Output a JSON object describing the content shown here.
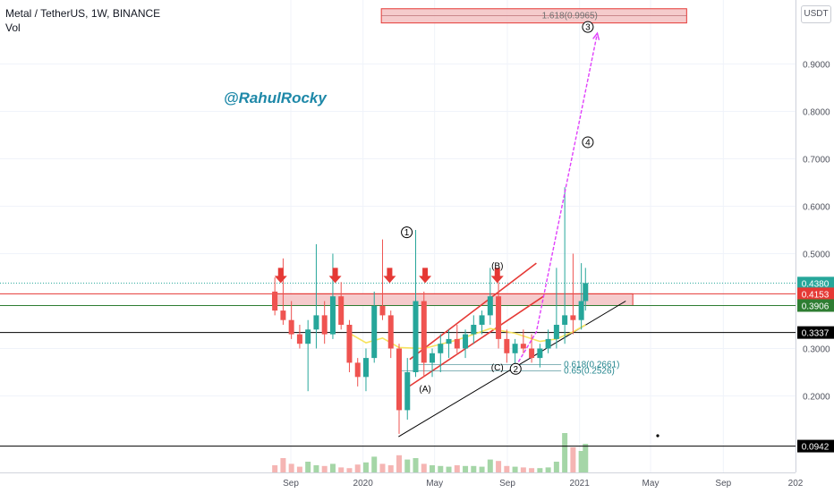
{
  "header": {
    "title": "Metal / TetherUS, 1W, BINANCE",
    "volume_label": "Vol"
  },
  "watermark": "@RahulRocky",
  "currency_button": "USDT",
  "colors": {
    "up": "#26a69a",
    "down": "#ef5350",
    "volume_up": "#a5d6a7",
    "volume_down": "#f5b5b3",
    "resistance_zone": "#f3c2c3",
    "arrows": "#e53935",
    "projection": "#e040fb",
    "moving_average": "#f7e35d"
  },
  "chart_data": {
    "type": "candlestick",
    "price_axis": {
      "tick_labels": [
        "0.9000",
        "0.8000",
        "0.7000",
        "0.6000",
        "0.5000",
        "0.3000",
        "0.2000"
      ],
      "ticks": [
        0.9,
        0.8,
        0.7,
        0.6,
        0.5,
        0.3,
        0.2
      ],
      "range": [
        0.07,
        1.04
      ]
    },
    "time_axis": {
      "tick_labels": [
        "Sep",
        "2020",
        "May",
        "Sep",
        "2021",
        "May",
        "Sep",
        "202"
      ],
      "ticks": [
        "2019-09",
        "2020-01",
        "2020-05",
        "2020-09",
        "2021-01",
        "2021-05",
        "2021-09",
        "2022-01"
      ]
    },
    "price_labels": [
      {
        "text": "0.4380",
        "value": 0.438,
        "color": "#26a69a",
        "line": "dotted"
      },
      {
        "text": "0.4153",
        "value": 0.4153,
        "color": "#e53935",
        "line": "solid"
      },
      {
        "text": "0.3906",
        "value": 0.3906,
        "color": "#2e7d32",
        "line": "solid"
      },
      {
        "text": "0.3337",
        "value": 0.3337,
        "color": "#000000",
        "line": "solid"
      },
      {
        "text": "0.0942",
        "value": 0.0942,
        "color": "#000000",
        "line": "solid"
      }
    ],
    "zones": [
      {
        "label": "",
        "start": "2019-08",
        "end": "2021-04",
        "low": 0.3906,
        "high": 0.4153
      },
      {
        "label": "1.618(0.9965)",
        "start": "2020-02",
        "end": "2021-07",
        "low": 0.9865,
        "high": 1.0165
      }
    ],
    "fib_levels": [
      {
        "label": "0.618(0.2661)",
        "value": 0.2661,
        "start": "2020-04",
        "end": "2020-12"
      },
      {
        "label": "0.65(0.2526)",
        "value": 0.2526,
        "start": "2020-03",
        "end": "2020-12"
      }
    ],
    "wave_labels": [
      {
        "text": "1",
        "date": "2020-03",
        "price": 0.545,
        "circled": true
      },
      {
        "text": "(B)",
        "date": "2020-08",
        "price": 0.475,
        "circled": false
      },
      {
        "text": "(A)",
        "date": "2020-04",
        "price": 0.215,
        "circled": false
      },
      {
        "text": "(C)",
        "date": "2020-08",
        "price": 0.26,
        "circled": false
      },
      {
        "text": "2",
        "date": "2020-09",
        "price": 0.257,
        "circled": true
      },
      {
        "text": "4",
        "date": "2021-01",
        "price": 0.735,
        "circled": true
      },
      {
        "text": "3",
        "date": "2021-01",
        "price": 0.978,
        "circled": true
      }
    ],
    "red_arrow_dates": [
      "2019-08",
      "2019-11",
      "2020-02",
      "2020-04",
      "2020-08"
    ],
    "candles": [
      {
        "t": "2019-08-05",
        "o": 0.42,
        "h": 0.45,
        "l": 0.37,
        "c": 0.38
      },
      {
        "t": "2019-08-19",
        "o": 0.38,
        "h": 0.49,
        "l": 0.35,
        "c": 0.36
      },
      {
        "t": "2019-09-02",
        "o": 0.36,
        "h": 0.4,
        "l": 0.32,
        "c": 0.33
      },
      {
        "t": "2019-09-16",
        "o": 0.33,
        "h": 0.35,
        "l": 0.3,
        "c": 0.31
      },
      {
        "t": "2019-09-30",
        "o": 0.31,
        "h": 0.36,
        "l": 0.21,
        "c": 0.34
      },
      {
        "t": "2019-10-14",
        "o": 0.34,
        "h": 0.52,
        "l": 0.3,
        "c": 0.37
      },
      {
        "t": "2019-10-28",
        "o": 0.37,
        "h": 0.4,
        "l": 0.31,
        "c": 0.33
      },
      {
        "t": "2019-11-11",
        "o": 0.33,
        "h": 0.5,
        "l": 0.32,
        "c": 0.41
      },
      {
        "t": "2019-11-25",
        "o": 0.41,
        "h": 0.44,
        "l": 0.34,
        "c": 0.35
      },
      {
        "t": "2019-12-09",
        "o": 0.35,
        "h": 0.36,
        "l": 0.25,
        "c": 0.27
      },
      {
        "t": "2019-12-23",
        "o": 0.27,
        "h": 0.28,
        "l": 0.22,
        "c": 0.24
      },
      {
        "t": "2020-01-06",
        "o": 0.24,
        "h": 0.3,
        "l": 0.21,
        "c": 0.28
      },
      {
        "t": "2020-01-20",
        "o": 0.28,
        "h": 0.42,
        "l": 0.27,
        "c": 0.39
      },
      {
        "t": "2020-02-03",
        "o": 0.39,
        "h": 0.53,
        "l": 0.36,
        "c": 0.37
      },
      {
        "t": "2020-02-17",
        "o": 0.37,
        "h": 0.38,
        "l": 0.28,
        "c": 0.3
      },
      {
        "t": "2020-03-02",
        "o": 0.3,
        "h": 0.31,
        "l": 0.12,
        "c": 0.17
      },
      {
        "t": "2020-03-16",
        "o": 0.17,
        "h": 0.28,
        "l": 0.15,
        "c": 0.25
      },
      {
        "t": "2020-03-30",
        "o": 0.25,
        "h": 0.55,
        "l": 0.24,
        "c": 0.4
      },
      {
        "t": "2020-04-13",
        "o": 0.4,
        "h": 0.42,
        "l": 0.24,
        "c": 0.27
      },
      {
        "t": "2020-04-27",
        "o": 0.27,
        "h": 0.3,
        "l": 0.24,
        "c": 0.29
      },
      {
        "t": "2020-05-11",
        "o": 0.29,
        "h": 0.33,
        "l": 0.25,
        "c": 0.31
      },
      {
        "t": "2020-05-25",
        "o": 0.31,
        "h": 0.34,
        "l": 0.28,
        "c": 0.32
      },
      {
        "t": "2020-06-08",
        "o": 0.32,
        "h": 0.35,
        "l": 0.29,
        "c": 0.3
      },
      {
        "t": "2020-06-22",
        "o": 0.3,
        "h": 0.34,
        "l": 0.28,
        "c": 0.33
      },
      {
        "t": "2020-07-06",
        "o": 0.33,
        "h": 0.37,
        "l": 0.31,
        "c": 0.35
      },
      {
        "t": "2020-07-20",
        "o": 0.35,
        "h": 0.38,
        "l": 0.33,
        "c": 0.37
      },
      {
        "t": "2020-08-03",
        "o": 0.37,
        "h": 0.47,
        "l": 0.35,
        "c": 0.41
      },
      {
        "t": "2020-08-17",
        "o": 0.41,
        "h": 0.44,
        "l": 0.3,
        "c": 0.32
      },
      {
        "t": "2020-08-31",
        "o": 0.32,
        "h": 0.34,
        "l": 0.27,
        "c": 0.29
      },
      {
        "t": "2020-09-14",
        "o": 0.29,
        "h": 0.32,
        "l": 0.26,
        "c": 0.31
      },
      {
        "t": "2020-09-28",
        "o": 0.31,
        "h": 0.34,
        "l": 0.29,
        "c": 0.3
      },
      {
        "t": "2020-10-12",
        "o": 0.3,
        "h": 0.33,
        "l": 0.27,
        "c": 0.28
      },
      {
        "t": "2020-10-26",
        "o": 0.28,
        "h": 0.31,
        "l": 0.26,
        "c": 0.3
      },
      {
        "t": "2020-11-09",
        "o": 0.3,
        "h": 0.34,
        "l": 0.29,
        "c": 0.32
      },
      {
        "t": "2020-11-23",
        "o": 0.32,
        "h": 0.47,
        "l": 0.3,
        "c": 0.35
      },
      {
        "t": "2020-12-07",
        "o": 0.35,
        "h": 0.64,
        "l": 0.31,
        "c": 0.37
      },
      {
        "t": "2020-12-21",
        "o": 0.37,
        "h": 0.5,
        "l": 0.33,
        "c": 0.36
      },
      {
        "t": "2021-01-04",
        "o": 0.36,
        "h": 0.48,
        "l": 0.34,
        "c": 0.4
      },
      {
        "t": "2021-01-11",
        "o": 0.4,
        "h": 0.47,
        "l": 0.38,
        "c": 0.438
      }
    ],
    "volume": [
      0.1,
      0.2,
      0.12,
      0.08,
      0.15,
      0.1,
      0.09,
      0.12,
      0.07,
      0.06,
      0.11,
      0.14,
      0.22,
      0.12,
      0.1,
      0.24,
      0.18,
      0.2,
      0.12,
      0.1,
      0.09,
      0.08,
      0.1,
      0.09,
      0.09,
      0.08,
      0.18,
      0.16,
      0.09,
      0.08,
      0.07,
      0.06,
      0.06,
      0.07,
      0.15,
      0.55,
      0.35,
      0.3,
      0.4
    ],
    "moving_average": [
      {
        "t": "2019-12-09",
        "v": 0.332
      },
      {
        "t": "2020-01-06",
        "v": 0.312
      },
      {
        "t": "2020-02-03",
        "v": 0.322
      },
      {
        "t": "2020-03-02",
        "v": 0.302
      },
      {
        "t": "2020-04-13",
        "v": 0.3
      },
      {
        "t": "2020-06-08",
        "v": 0.318
      },
      {
        "t": "2020-08-03",
        "v": 0.342
      },
      {
        "t": "2020-09-14",
        "v": 0.332
      },
      {
        "t": "2020-10-26",
        "v": 0.315
      },
      {
        "t": "2020-11-23",
        "v": 0.32
      },
      {
        "t": "2020-12-21",
        "v": 0.335
      },
      {
        "t": "2021-01-11",
        "v": 0.35
      }
    ],
    "channel_lines": [
      {
        "color": "#e53935",
        "points": [
          [
            "2020-03-20",
            0.277
          ],
          [
            "2020-10-20",
            0.48
          ]
        ]
      },
      {
        "color": "#e53935",
        "points": [
          [
            "2020-03-20",
            0.221
          ],
          [
            "2020-11-01",
            0.41
          ]
        ]
      },
      {
        "color": "#000000",
        "points": [
          [
            "2020-03-01",
            0.114
          ],
          [
            "2021-03-20",
            0.4
          ]
        ]
      }
    ],
    "projection_path": [
      [
        "2020-09-15",
        0.262
      ],
      [
        "2020-10-20",
        0.335
      ],
      [
        "2021-01-31",
        0.965
      ]
    ]
  }
}
